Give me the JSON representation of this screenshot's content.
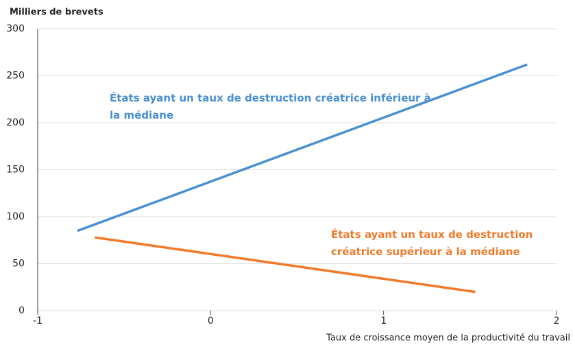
{
  "chart_data": {
    "type": "line",
    "ylabel": "Milliers de brevets",
    "xlabel": "Taux de croissance moyen de la productivité du travail",
    "xlim": [
      -1,
      2
    ],
    "xticks": [
      -1,
      0,
      1,
      2
    ],
    "ylim": [
      0,
      300
    ],
    "yticks": [
      0,
      50,
      100,
      150,
      200,
      250,
      300
    ],
    "grid": true,
    "series": [
      {
        "name": "États ayant un taux de destruction créatrice inférieur à la médiane",
        "color": "#4a90d0",
        "x": [
          -0.77,
          1.83
        ],
        "values": [
          85,
          262
        ]
      },
      {
        "name": "États ayant un taux de destruction créatrice supérieur à la médiane",
        "color": "#f07a2a",
        "x": [
          -0.67,
          1.53
        ],
        "values": [
          78,
          20
        ]
      }
    ]
  }
}
